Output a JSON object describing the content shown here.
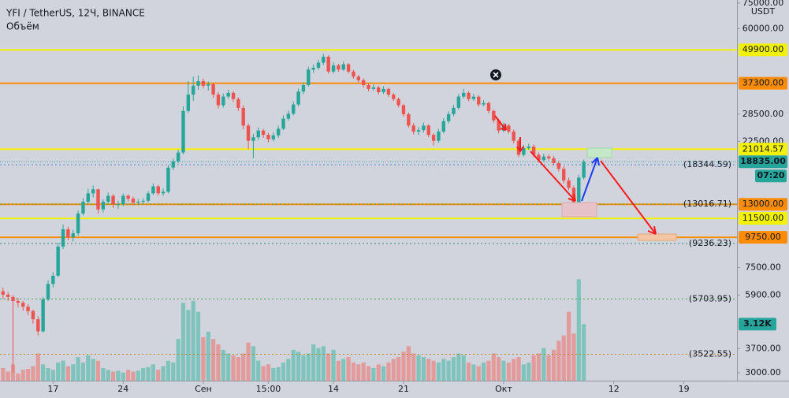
{
  "chart_data": {
    "type": "candlestick",
    "title": "YFI / TetherUS, 12Ч, BINANCE",
    "unit": "USDT",
    "log": true,
    "ylim": [
      2800,
      77000
    ],
    "yticks": [
      {
        "value": 75000,
        "label": "75000.00"
      },
      {
        "value": 60000,
        "label": "60000.00"
      },
      {
        "value": 28500,
        "label": "28500.00"
      },
      {
        "value": 22500,
        "label": "22500.00"
      },
      {
        "value": 7500,
        "label": "7500.00"
      },
      {
        "value": 5900,
        "label": "5900.00"
      },
      {
        "value": 3700,
        "label": "3700.00"
      },
      {
        "value": 3000,
        "label": "3000.00"
      }
    ],
    "xlim": [
      -0.6,
      146.6
    ],
    "xticks": [
      {
        "value": 10,
        "label": "17"
      },
      {
        "value": 24,
        "label": "24"
      },
      {
        "value": 40,
        "label": "Сен"
      },
      {
        "value": 53,
        "label": "15:00"
      },
      {
        "value": 66,
        "label": "14"
      },
      {
        "value": 80,
        "label": "21"
      },
      {
        "value": 100,
        "label": "Окт"
      },
      {
        "value": 122,
        "label": "12"
      },
      {
        "value": 136,
        "label": "19"
      }
    ],
    "up_color": "#26a69a",
    "down_color": "#ef5350",
    "candles": [
      [
        6100,
        6300,
        5700,
        5920
      ],
      [
        5920,
        6050,
        5600,
        5800
      ],
      [
        5800,
        5900,
        3000,
        5600
      ],
      [
        5600,
        5750,
        5300,
        5520
      ],
      [
        5520,
        5600,
        5150,
        5330
      ],
      [
        5330,
        5450,
        4950,
        5130
      ],
      [
        5130,
        5200,
        4600,
        4780
      ],
      [
        4780,
        4900,
        4150,
        4300
      ],
      [
        4300,
        5800,
        4250,
        5680
      ],
      [
        5680,
        6700,
        5600,
        6500
      ],
      [
        6500,
        7200,
        6300,
        6980
      ],
      [
        6980,
        9300,
        6900,
        9000
      ],
      [
        9000,
        10900,
        8800,
        10460
      ],
      [
        10460,
        10700,
        9500,
        9760
      ],
      [
        9760,
        10400,
        9400,
        10100
      ],
      [
        10100,
        12300,
        9900,
        12000
      ],
      [
        12000,
        13700,
        11800,
        13300
      ],
      [
        13300,
        14900,
        13000,
        14300
      ],
      [
        14300,
        15300,
        13800,
        14810
      ],
      [
        14810,
        14900,
        12000,
        12440
      ],
      [
        12440,
        13600,
        12100,
        13300
      ],
      [
        13300,
        14400,
        13000,
        14000
      ],
      [
        14000,
        14200,
        12600,
        13000
      ],
      [
        13000,
        13400,
        12500,
        13000
      ],
      [
        13000,
        14300,
        12800,
        14000
      ],
      [
        14000,
        14200,
        13300,
        13650
      ],
      [
        13650,
        13900,
        12900,
        13200
      ],
      [
        13200,
        13600,
        12900,
        13300
      ],
      [
        13300,
        13700,
        13000,
        13400
      ],
      [
        13400,
        14600,
        13200,
        14300
      ],
      [
        14300,
        15600,
        14100,
        15200
      ],
      [
        15200,
        15400,
        14000,
        14300
      ],
      [
        14300,
        14900,
        14000,
        14500
      ],
      [
        14500,
        18300,
        14300,
        17900
      ],
      [
        17900,
        19400,
        17500,
        18900
      ],
      [
        18900,
        20900,
        18600,
        20400
      ],
      [
        20400,
        30500,
        20100,
        29300
      ],
      [
        29300,
        38000,
        28800,
        33800
      ],
      [
        33800,
        39500,
        32000,
        36500
      ],
      [
        36500,
        40000,
        35200,
        38000
      ],
      [
        38000,
        38900,
        35600,
        36500
      ],
      [
        36500,
        37900,
        35000,
        37000
      ],
      [
        37000,
        37400,
        32900,
        33800
      ],
      [
        33800,
        34500,
        29900,
        30800
      ],
      [
        30800,
        34100,
        30200,
        33200
      ],
      [
        33200,
        35200,
        32600,
        34300
      ],
      [
        34300,
        34900,
        31700,
        32500
      ],
      [
        32500,
        33000,
        29300,
        30100
      ],
      [
        30100,
        30800,
        25000,
        25800
      ],
      [
        25800,
        26300,
        21000,
        22600
      ],
      [
        22600,
        24000,
        19400,
        23300
      ],
      [
        23300,
        25400,
        22800,
        24700
      ],
      [
        24700,
        25100,
        23200,
        23800
      ],
      [
        23800,
        24200,
        22300,
        22900
      ],
      [
        22900,
        24300,
        22500,
        23700
      ],
      [
        23700,
        25800,
        23200,
        25100
      ],
      [
        25100,
        28200,
        24800,
        27400
      ],
      [
        27400,
        29400,
        26900,
        28600
      ],
      [
        28600,
        31800,
        28200,
        31000
      ],
      [
        31000,
        35600,
        30500,
        34700
      ],
      [
        34700,
        37600,
        33900,
        36700
      ],
      [
        36700,
        43100,
        36200,
        42000
      ],
      [
        42000,
        43900,
        40800,
        42700
      ],
      [
        42700,
        45800,
        41900,
        44600
      ],
      [
        44600,
        48200,
        43700,
        47000
      ],
      [
        47000,
        47600,
        40500,
        41300
      ],
      [
        41300,
        44800,
        40600,
        43600
      ],
      [
        43600,
        44200,
        41200,
        42000
      ],
      [
        42000,
        45100,
        41500,
        44000
      ],
      [
        44000,
        44500,
        40600,
        41300
      ],
      [
        41300,
        41900,
        38800,
        39500
      ],
      [
        39500,
        40200,
        37600,
        38300
      ],
      [
        38300,
        38900,
        35900,
        36700
      ],
      [
        36700,
        37300,
        34800,
        35500
      ],
      [
        35500,
        36900,
        34900,
        36000
      ],
      [
        36000,
        36500,
        33800,
        34500
      ],
      [
        34500,
        36400,
        34000,
        35500
      ],
      [
        35500,
        35900,
        33100,
        33800
      ],
      [
        33800,
        34300,
        31900,
        32500
      ],
      [
        32500,
        33000,
        30200,
        30800
      ],
      [
        30800,
        31200,
        27900,
        28500
      ],
      [
        28500,
        28900,
        25300,
        25800
      ],
      [
        25800,
        26400,
        23900,
        24500
      ],
      [
        24500,
        25500,
        23800,
        24800
      ],
      [
        24800,
        26500,
        24300,
        25800
      ],
      [
        25800,
        26100,
        23300,
        23800
      ],
      [
        23800,
        24200,
        21700,
        22600
      ],
      [
        22600,
        25100,
        22200,
        24500
      ],
      [
        24500,
        27500,
        24100,
        26800
      ],
      [
        26800,
        29200,
        26300,
        28500
      ],
      [
        28500,
        30900,
        28000,
        30100
      ],
      [
        30100,
        34000,
        29600,
        33200
      ],
      [
        33200,
        35500,
        32600,
        34300
      ],
      [
        34300,
        34800,
        31900,
        32500
      ],
      [
        32500,
        34000,
        32000,
        33200
      ],
      [
        33200,
        33600,
        30400,
        31000
      ],
      [
        31000,
        32200,
        30500,
        31400
      ],
      [
        31400,
        31800,
        28700,
        29300
      ],
      [
        29300,
        29700,
        26400,
        27000
      ],
      [
        27000,
        27400,
        24100,
        24700
      ],
      [
        24700,
        26500,
        24300,
        25800
      ],
      [
        25800,
        26200,
        24000,
        24500
      ],
      [
        24500,
        24900,
        22100,
        22600
      ],
      [
        22600,
        23000,
        19600,
        20000
      ],
      [
        20000,
        21800,
        19700,
        21200
      ],
      [
        21200,
        22000,
        20900,
        21500
      ],
      [
        21500,
        21900,
        19600,
        20000
      ],
      [
        20000,
        20400,
        18700,
        19100
      ],
      [
        19100,
        20200,
        18800,
        19700
      ],
      [
        19700,
        20100,
        19000,
        19400
      ],
      [
        19400,
        19800,
        18200,
        18600
      ],
      [
        18600,
        19000,
        17300,
        17700
      ],
      [
        17700,
        18100,
        15600,
        16000
      ],
      [
        16000,
        16400,
        14700,
        15000
      ],
      [
        15000,
        15300,
        12800,
        13200
      ],
      [
        13200,
        16800,
        12400,
        16400
      ],
      [
        16400,
        19200,
        16100,
        18835
      ]
    ],
    "volume": {
      "name": "Объём",
      "ylim": [
        0,
        10000
      ],
      "up_color": "#7fc4bc",
      "down_color": "#e39a9a",
      "last_label": "3.12K",
      "values": [
        700,
        500,
        900,
        400,
        600,
        650,
        800,
        1500,
        900,
        700,
        600,
        1000,
        1100,
        800,
        900,
        1300,
        1000,
        1400,
        1200,
        1100,
        700,
        600,
        500,
        550,
        450,
        600,
        500,
        550,
        700,
        750,
        900,
        600,
        800,
        1100,
        1000,
        2300,
        4300,
        3900,
        4400,
        3800,
        2400,
        2700,
        2300,
        2000,
        1700,
        1500,
        1400,
        1300,
        1500,
        2100,
        1900,
        1100,
        800,
        900,
        700,
        750,
        1000,
        1200,
        1700,
        1600,
        1400,
        1500,
        2000,
        1800,
        1900,
        1500,
        1700,
        1100,
        1200,
        1300,
        1000,
        900,
        1000,
        800,
        700,
        900,
        800,
        1000,
        1200,
        1300,
        1600,
        1900,
        1500,
        1400,
        1300,
        1200,
        1100,
        1000,
        1200,
        1100,
        1300,
        1500,
        1400,
        1000,
        900,
        800,
        1000,
        1100,
        1500,
        1300,
        1100,
        1000,
        1200,
        1300,
        900,
        1000,
        1400,
        1500,
        1800,
        1400,
        1700,
        2200,
        2500,
        3800,
        2600,
        5600,
        3120
      ]
    },
    "levels": [
      {
        "value": 49900,
        "label": "49900.00",
        "color": "#f2f200",
        "style": "solid"
      },
      {
        "value": 37300,
        "label": "37300.00",
        "color": "#ff8c00",
        "style": "solid"
      },
      {
        "value": 21014.57,
        "label": "21014.57",
        "color": "#f2f200",
        "style": "solid"
      },
      {
        "value": 13000,
        "label": "13000.00",
        "color": "#ff8c00",
        "style": "solid"
      },
      {
        "value": 11500,
        "label": "11500.00",
        "color": "#f2f200",
        "style": "solid"
      },
      {
        "value": 9750,
        "label": "9750.00",
        "color": "#ff8c00",
        "style": "solid"
      },
      {
        "value": 18344.59,
        "label": "(18344.59)",
        "color": "#4a90d9",
        "style": "dotted"
      },
      {
        "value": 13016.71,
        "label": "(13016.71)",
        "color": "#3fa34d",
        "style": "dotted"
      },
      {
        "value": 9236.23,
        "label": "(9236.23)",
        "color": "#2e8b7a",
        "style": "dotted"
      },
      {
        "value": 5703.95,
        "label": "(5703.95)",
        "color": "#3fa34d",
        "style": "dotted"
      },
      {
        "value": 3522.55,
        "label": "(3522.55)",
        "color": "#c0841a",
        "style": "dotted"
      }
    ],
    "price_line": {
      "value": 18835,
      "label": "18835.00",
      "countdown": "07:20",
      "color": "#26a69a"
    }
  }
}
